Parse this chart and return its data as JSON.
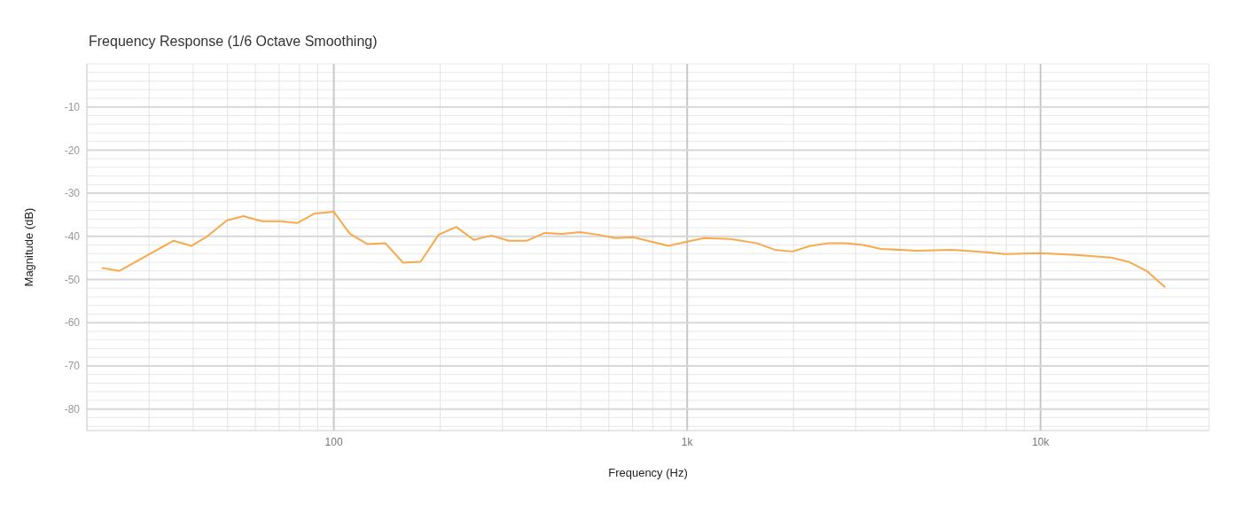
{
  "chart_data": {
    "type": "line",
    "title": "Frequency Response (1/6 Octave Smoothing)",
    "xlabel": "Frequency (Hz)",
    "ylabel": "Magnitude (dB)",
    "log": "x",
    "grid": true,
    "marker": "none",
    "line_style": "solid",
    "xlim": [
      20,
      30000
    ],
    "ylim": [
      -85,
      0
    ],
    "xticks": [
      {
        "value": 20,
        "label": null
      },
      {
        "value": 30,
        "label": null
      },
      {
        "value": 40,
        "label": null
      },
      {
        "value": 50,
        "label": null
      },
      {
        "value": 60,
        "label": null
      },
      {
        "value": 70,
        "label": null
      },
      {
        "value": 80,
        "label": null
      },
      {
        "value": 90,
        "label": null
      },
      100,
      {
        "value": 200,
        "label": null
      },
      {
        "value": 300,
        "label": null
      },
      {
        "value": 400,
        "label": null
      },
      {
        "value": 500,
        "label": null
      },
      {
        "value": 600,
        "label": null
      },
      {
        "value": 700,
        "label": null
      },
      {
        "value": 800,
        "label": null
      },
      {
        "value": 900,
        "label": null
      },
      {
        "value": 1000,
        "label": "1k"
      },
      {
        "value": 2000,
        "label": null
      },
      {
        "value": 3000,
        "label": null
      },
      {
        "value": 4000,
        "label": null
      },
      {
        "value": 5000,
        "label": null
      },
      {
        "value": 6000,
        "label": null
      },
      {
        "value": 7000,
        "label": null
      },
      {
        "value": 8000,
        "label": null
      },
      {
        "value": 9000,
        "label": null
      },
      {
        "value": 10000,
        "label": "10k"
      },
      {
        "value": 20000,
        "label": null
      }
    ],
    "yticks": [
      {
        "value": -84,
        "label": null
      },
      {
        "value": -82,
        "label": null
      },
      -80,
      {
        "value": -78,
        "label": null
      },
      {
        "value": -76,
        "label": null
      },
      {
        "value": -74,
        "label": null
      },
      {
        "value": -72,
        "label": null
      },
      -70,
      {
        "value": -68,
        "label": null
      },
      {
        "value": -66,
        "label": null
      },
      {
        "value": -64,
        "label": null
      },
      {
        "value": -62,
        "label": null
      },
      -60,
      {
        "value": -58,
        "label": null
      },
      {
        "value": -56,
        "label": null
      },
      {
        "value": -54,
        "label": null
      },
      {
        "value": -52,
        "label": null
      },
      -50,
      {
        "value": -48,
        "label": null
      },
      {
        "value": -46,
        "label": null
      },
      {
        "value": -44,
        "label": null
      },
      {
        "value": -42,
        "label": null
      },
      -40,
      {
        "value": -38,
        "label": null
      },
      {
        "value": -36,
        "label": null
      },
      {
        "value": -34,
        "label": null
      },
      {
        "value": -32,
        "label": null
      },
      -30,
      {
        "value": -28,
        "label": null
      },
      {
        "value": -26,
        "label": null
      },
      {
        "value": -24,
        "label": null
      },
      {
        "value": -22,
        "label": null
      },
      -20,
      {
        "value": -18,
        "label": null
      },
      {
        "value": -16,
        "label": null
      },
      {
        "value": -14,
        "label": null
      },
      {
        "value": -12,
        "label": null
      },
      -10,
      {
        "value": -8,
        "label": null
      },
      {
        "value": -6,
        "label": null
      },
      {
        "value": -4,
        "label": null
      },
      {
        "value": -2,
        "label": null
      }
    ],
    "series": [
      {
        "color": "#f7a94b",
        "x": [
          22,
          24.7,
          35.2,
          39.5,
          43.8,
          49.8,
          55.5,
          62.7,
          70.8,
          78.9,
          88.1,
          100,
          111,
          124.5,
          140,
          157,
          176,
          198,
          222,
          249,
          279,
          313,
          352,
          395,
          443,
          497,
          558,
          626,
          703,
          886,
          1000,
          1116,
          1327,
          1577,
          1770,
          1987,
          2230,
          2500,
          2806,
          3150,
          3536,
          4454,
          5610,
          7070,
          7930,
          10000,
          12600,
          15860,
          17800,
          19970,
          22540
        ],
        "values": [
          -47.3,
          -48.0,
          -41.0,
          -42.2,
          -40.0,
          -36.3,
          -35.3,
          -36.5,
          -36.5,
          -36.9,
          -34.7,
          -34.3,
          -39.4,
          -41.8,
          -41.6,
          -46.1,
          -45.9,
          -39.6,
          -37.8,
          -40.8,
          -39.8,
          -41.0,
          -41.0,
          -39.2,
          -39.4,
          -39.0,
          -39.6,
          -40.4,
          -40.2,
          -42.2,
          -41.2,
          -40.4,
          -40.6,
          -41.6,
          -43.1,
          -43.5,
          -42.2,
          -41.6,
          -41.6,
          -42.0,
          -42.9,
          -43.3,
          -43.1,
          -43.7,
          -44.1,
          -43.9,
          -44.3,
          -44.9,
          -45.9,
          -48.0,
          -51.8
        ]
      }
    ]
  }
}
